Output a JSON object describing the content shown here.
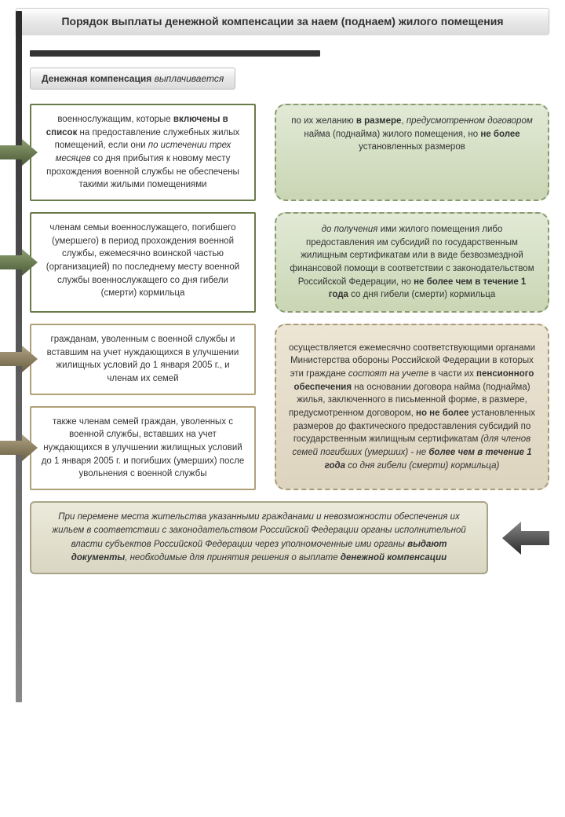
{
  "colors": {
    "green_border": "#6a7a4a",
    "green_fill_top": "#e2e9d6",
    "green_fill_bot": "#c9d6b4",
    "green_dash": "#8a9a70",
    "tan_border": "#b0a078",
    "tan_fill_top": "#ece5d4",
    "tan_fill_bot": "#ddd4bf",
    "tan_dash": "#a89b7a",
    "arrow_green_dark": "#4a5a38",
    "arrow_green_light": "#8ea070",
    "arrow_tan_dark": "#6a5e44",
    "arrow_tan_light": "#b0a482",
    "vline": "#333333",
    "footer_bg": "#d9d6c2",
    "footer_border": "#a8a488"
  },
  "title": "Порядок выплаты денежной компенсации за наем (поднаем) жилого помещения",
  "subheader_html": "<b>Денежная компенсация</b> <i>выплачивается</i>",
  "boxes": {
    "l1": "военнослужащим, которые <b>включены в список</b> на предоставление служебных жилых помещений, если они <i>по истечении трех месяцев</i> со дня прибытия к новому месту прохождения военной службы не обеспечены такими жилыми помещениями",
    "r1": "по их желанию <b>в размере</b>, <i>предусмотренном договором</i> найма (поднайма) жилого помещения, но <b>не более</b> установленных размеров",
    "l2": "членам семьи военнослужащего, погибшего (умершего) в период прохождения военной службы, ежемесячно воинской частью (организацией) по последнему месту военной службы военнослужащего со дня гибели (смерти) кормильца",
    "r2": "<i>до получения</i> ими жилого помещения либо предоставления им субсидий по государственным жилищным сертификатам или в виде безвозмездной финансовой помощи в соответствии с законодательством Российской Федерации, но <b>не более чем в течение 1 года</b> со дня гибели (смерти) кормильца",
    "l3": "гражданам, уволенным с военной службы и вставшим на учет нуждающихся в улучшении жилищных условий до 1 января 2005 г., и членам их семей",
    "l4": "также членам семей граждан, уволенных с военной службы, вставших на учет нуждающихся в улучшении жилищных условий до 1 января 2005 г. и погибших (умерших) после увольнения с военной службы",
    "r34": "осуществляется ежемесячно соответствующими органами Министерства обороны Российской Федерации в которых эти граждане <i>состоят на учете</i> в части их <b>пенсионного обеспечения</b> на основании договора найма (поднайма) жилья, заключенного в письменной форме, в размере, предусмотренном договором, <b>но не более</b> установленных размеров до фактического предоставления субсидий по государственным жилищным сертификатам <i>(для членов семей погибших (умерших) - не <b>более чем в течение 1 года</b> со дня гибели (смерти) кормильца)</i>"
  },
  "footer": "<i>При перемене места жительства</i> указанными гражданами и невозможности обеспечения их жильем в соответствии с законодательством Российской Федерации органы исполнительной власти субъектов Российской Федерации через уполномоченные ими органы <b>выдают документы</b>, необходимые для <i>принятия решения</i> о выплате <b>денежной компенсации</b>"
}
